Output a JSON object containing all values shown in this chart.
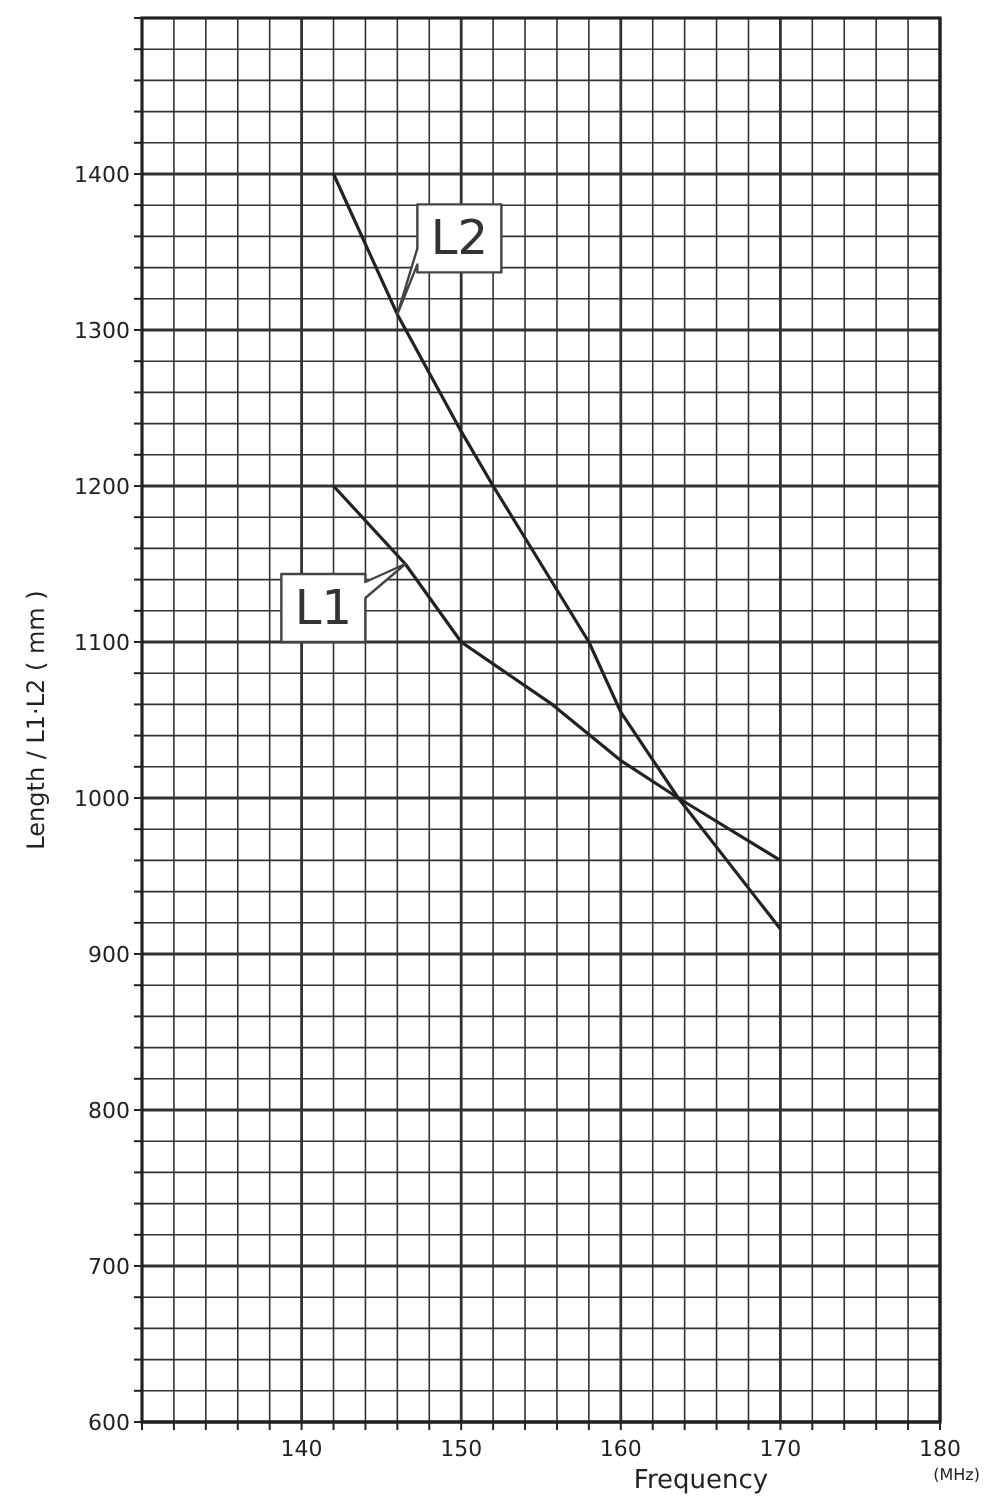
{
  "chart_data": {
    "type": "line",
    "xlabel": "Frequency",
    "ylabel": "Length / L1·L2 ( mm )",
    "annotations": [
      "(MHz)"
    ],
    "series": [
      {
        "name": "L1",
        "color": "#222222",
        "x": [
          142,
          146.5,
          150,
          155.7,
          160,
          163.6,
          170
        ],
        "values": [
          1200,
          1150,
          1100,
          1060,
          1024,
          1000,
          960
        ]
      },
      {
        "name": "L2",
        "color": "#222222",
        "x": [
          142,
          146,
          150,
          152,
          155,
          158,
          160,
          163.6,
          170
        ],
        "values": [
          1400,
          1310,
          1235,
          1200,
          1150,
          1100,
          1055,
          1000,
          916
        ]
      }
    ],
    "xlim": [
      130,
      180
    ],
    "ylim": [
      600,
      1500
    ],
    "xticks": [
      {
        "value": 130,
        "label": null
      },
      {
        "value": 132,
        "label": null
      },
      {
        "value": 134,
        "label": null
      },
      {
        "value": 136,
        "label": null
      },
      {
        "value": 138,
        "label": null
      },
      140,
      {
        "value": 142,
        "label": null
      },
      {
        "value": 144,
        "label": null
      },
      {
        "value": 146,
        "label": null
      },
      {
        "value": 148,
        "label": null
      },
      150,
      {
        "value": 152,
        "label": null
      },
      {
        "value": 154,
        "label": null
      },
      {
        "value": 156,
        "label": null
      },
      {
        "value": 158,
        "label": null
      },
      160,
      {
        "value": 162,
        "label": null
      },
      {
        "value": 164,
        "label": null
      },
      {
        "value": 166,
        "label": null
      },
      {
        "value": 168,
        "label": null
      },
      170,
      {
        "value": 172,
        "label": null
      },
      {
        "value": 174,
        "label": null
      },
      {
        "value": 176,
        "label": null
      },
      {
        "value": 178,
        "label": null
      },
      180
    ],
    "yticks": [
      600,
      {
        "value": 620,
        "label": null
      },
      {
        "value": 640,
        "label": null
      },
      {
        "value": 660,
        "label": null
      },
      {
        "value": 680,
        "label": null
      },
      700,
      {
        "value": 720,
        "label": null
      },
      {
        "value": 740,
        "label": null
      },
      {
        "value": 760,
        "label": null
      },
      {
        "value": 780,
        "label": null
      },
      800,
      {
        "value": 820,
        "label": null
      },
      {
        "value": 840,
        "label": null
      },
      {
        "value": 860,
        "label": null
      },
      {
        "value": 880,
        "label": null
      },
      900,
      {
        "value": 920,
        "label": null
      },
      {
        "value": 940,
        "label": null
      },
      {
        "value": 960,
        "label": null
      },
      {
        "value": 980,
        "label": null
      },
      1000,
      {
        "value": 1020,
        "label": null
      },
      {
        "value": 1040,
        "label": null
      },
      {
        "value": 1060,
        "label": null
      },
      {
        "value": 1080,
        "label": null
      },
      1100,
      {
        "value": 1120,
        "label": null
      },
      {
        "value": 1140,
        "label": null
      },
      {
        "value": 1160,
        "label": null
      },
      {
        "value": 1180,
        "label": null
      },
      1200,
      {
        "value": 1220,
        "label": null
      },
      {
        "value": 1240,
        "label": null
      },
      {
        "value": 1260,
        "label": null
      },
      {
        "value": 1280,
        "label": null
      },
      1300,
      {
        "value": 1320,
        "label": null
      },
      {
        "value": 1340,
        "label": null
      },
      {
        "value": 1360,
        "label": null
      },
      {
        "value": 1380,
        "label": null
      },
      1400,
      {
        "value": 1420,
        "label": null
      },
      {
        "value": 1440,
        "label": null
      },
      {
        "value": 1460,
        "label": null
      },
      {
        "value": 1480,
        "label": null
      },
      {
        "value": 1500,
        "label": null
      }
    ],
    "grid": true,
    "marker": "none",
    "line_style": "solid"
  }
}
